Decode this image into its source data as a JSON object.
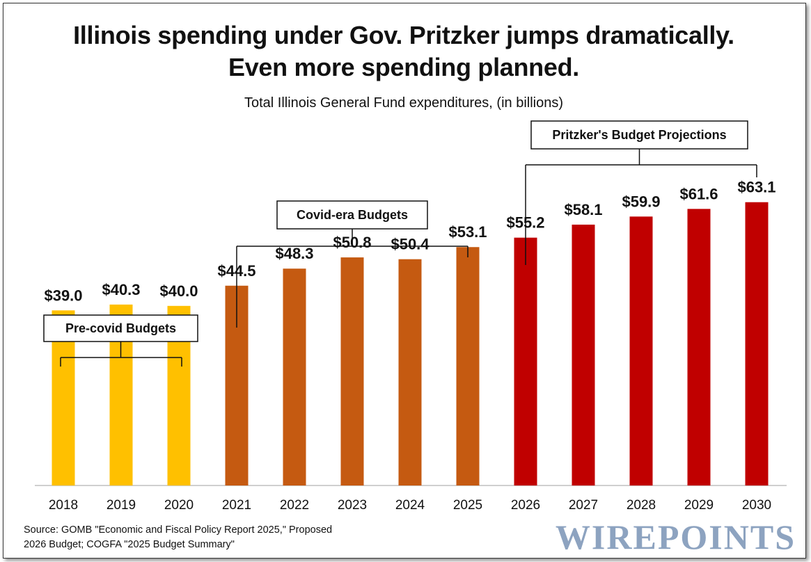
{
  "title_line1": "Illinois spending under Gov. Pritzker jumps dramatically.",
  "title_line2": "Even more spending planned.",
  "subtitle": "Total Illinois General Fund expenditures, (in billions)",
  "source_line1": "Source: GOMB \"Economic and Fiscal Policy Report 2025,\" Proposed",
  "source_line2": "2026 Budget; COGFA \"2025 Budget Summary\"",
  "logo_text": "WIREPOINTS",
  "chart_data": {
    "type": "bar",
    "title": "Illinois spending under Gov. Pritzker jumps dramatically. Even more spending planned.",
    "subtitle": "Total Illinois General Fund expenditures, (in billions)",
    "categories": [
      "2018",
      "2019",
      "2020",
      "2021",
      "2022",
      "2023",
      "2024",
      "2025",
      "2026",
      "2027",
      "2028",
      "2029",
      "2030"
    ],
    "values": [
      39.0,
      40.3,
      40.0,
      44.5,
      48.3,
      50.8,
      50.4,
      53.1,
      55.2,
      58.1,
      59.9,
      61.6,
      63.1
    ],
    "value_labels": [
      "$39.0",
      "$40.3",
      "$40.0",
      "$44.5",
      "$48.3",
      "$50.8",
      "$50.4",
      "$53.1",
      "$55.2",
      "$58.1",
      "$59.9",
      "$61.6",
      "$63.1"
    ],
    "ylim": [
      0,
      70
    ],
    "grid": false,
    "groups": [
      {
        "label": "Pre-covid Budgets",
        "start": 0,
        "end": 2,
        "color": "#FFC000"
      },
      {
        "label": "Covid-era Budgets",
        "start": 3,
        "end": 7,
        "color": "#C55A11"
      },
      {
        "label": "Pritzker's Budget Projections",
        "start": 8,
        "end": 12,
        "color": "#C00000"
      }
    ]
  }
}
